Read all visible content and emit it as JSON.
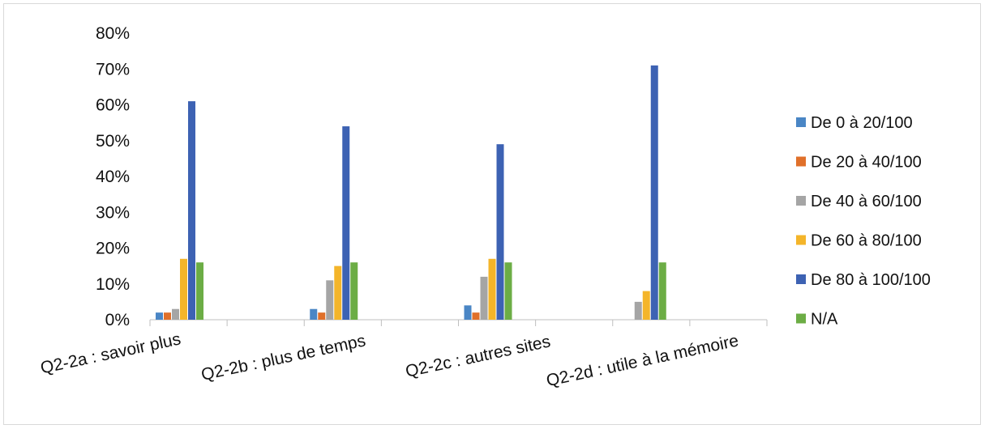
{
  "chart_data": {
    "type": "bar",
    "title": "",
    "xlabel": "",
    "ylabel": "",
    "ylim": [
      0,
      0.8
    ],
    "yticks": [
      "0%",
      "10%",
      "20%",
      "30%",
      "40%",
      "50%",
      "60%",
      "70%",
      "80%"
    ],
    "grid": false,
    "legend_position": "right",
    "categories": [
      "Q2-2a : savoir plus",
      "Q2-2b : plus de temps",
      "Q2-2c : autres sites",
      "Q2-2d : utile à la mémoire"
    ],
    "series": [
      {
        "name": "De 0 à 20/100",
        "color": "#4a86c5",
        "values": [
          0.02,
          0.03,
          0.04,
          0.0
        ]
      },
      {
        "name": "De 20 à 40/100",
        "color": "#e0702a",
        "values": [
          0.02,
          0.02,
          0.02,
          0.0
        ]
      },
      {
        "name": "De 40 à 60/100",
        "color": "#a5a5a5",
        "values": [
          0.03,
          0.11,
          0.12,
          0.05
        ]
      },
      {
        "name": "De 60 à 80/100",
        "color": "#f4b52a",
        "values": [
          0.17,
          0.15,
          0.17,
          0.08
        ]
      },
      {
        "name": "De 80 à 100/100",
        "color": "#3d62b3",
        "values": [
          0.61,
          0.54,
          0.49,
          0.71
        ]
      },
      {
        "name": "N/A",
        "color": "#6cad45",
        "values": [
          0.16,
          0.16,
          0.16,
          0.16
        ]
      }
    ]
  }
}
